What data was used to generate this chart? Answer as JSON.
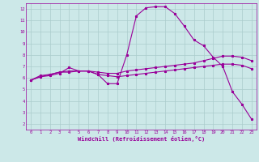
{
  "xlabel": "Windchill (Refroidissement éolien,°C)",
  "bg_color": "#cce8e8",
  "line_color": "#990099",
  "grid_color": "#aacccc",
  "x_ticks": [
    0,
    1,
    2,
    3,
    4,
    5,
    6,
    7,
    8,
    9,
    10,
    11,
    12,
    13,
    14,
    15,
    16,
    17,
    18,
    19,
    20,
    21,
    22,
    23
  ],
  "y_ticks": [
    2,
    3,
    4,
    5,
    6,
    7,
    8,
    9,
    10,
    11,
    12
  ],
  "ylim": [
    1.5,
    12.5
  ],
  "xlim": [
    -0.5,
    23.5
  ],
  "curve1_x": [
    0,
    1,
    2,
    3,
    4,
    5,
    6,
    7,
    8,
    9,
    10,
    11,
    12,
    13,
    14,
    15,
    16,
    17,
    18,
    19,
    20,
    21,
    22,
    23
  ],
  "curve1_y": [
    5.8,
    6.2,
    6.3,
    6.5,
    6.6,
    6.6,
    6.6,
    6.3,
    5.5,
    5.5,
    8.0,
    11.4,
    12.1,
    12.2,
    12.2,
    11.6,
    10.5,
    9.3,
    8.8,
    7.8,
    7.0,
    4.8,
    3.7,
    2.4
  ],
  "curve2_x": [
    0,
    1,
    2,
    3,
    4,
    5,
    6,
    7,
    8,
    9,
    10,
    11,
    12,
    13,
    14,
    15,
    16,
    17,
    18,
    19,
    20,
    21,
    22,
    23
  ],
  "curve2_y": [
    5.8,
    6.1,
    6.3,
    6.5,
    6.5,
    6.6,
    6.6,
    6.5,
    6.4,
    6.4,
    6.6,
    6.7,
    6.8,
    6.9,
    7.0,
    7.1,
    7.2,
    7.3,
    7.5,
    7.7,
    7.9,
    7.9,
    7.8,
    7.5
  ],
  "curve3_x": [
    0,
    1,
    2,
    3,
    4,
    5,
    6,
    7,
    8,
    9,
    10,
    11,
    12,
    13,
    14,
    15,
    16,
    17,
    18,
    19,
    20,
    21,
    22,
    23
  ],
  "curve3_y": [
    5.8,
    6.1,
    6.2,
    6.4,
    6.9,
    6.6,
    6.6,
    6.3,
    6.2,
    6.1,
    6.2,
    6.3,
    6.4,
    6.5,
    6.6,
    6.7,
    6.8,
    6.9,
    7.0,
    7.1,
    7.2,
    7.2,
    7.1,
    6.8
  ],
  "lw": 0.8,
  "ms": 2.0,
  "tick_fs": 4.0,
  "xlabel_fs": 5.0
}
